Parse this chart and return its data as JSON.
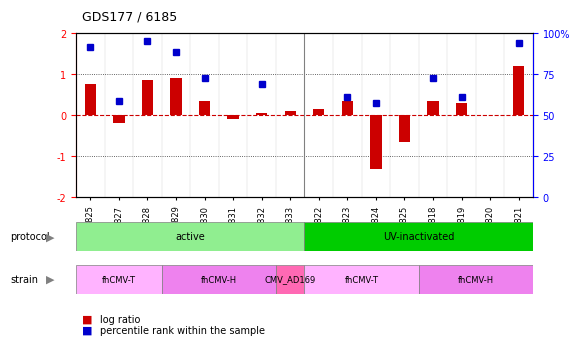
{
  "title": "GDS177 / 6185",
  "samples": [
    "GSM825",
    "GSM827",
    "GSM828",
    "GSM829",
    "GSM830",
    "GSM831",
    "GSM832",
    "GSM833",
    "GSM6822",
    "GSM6823",
    "GSM6824",
    "GSM6825",
    "GSM6818",
    "GSM6819",
    "GSM6820",
    "GSM6821"
  ],
  "log_ratio": [
    0.75,
    -0.2,
    0.85,
    0.9,
    0.35,
    -0.1,
    0.05,
    0.1,
    0.15,
    0.35,
    -1.3,
    -0.65,
    0.35,
    0.3,
    0.0,
    1.2
  ],
  "percentile": [
    1.65,
    0.35,
    1.8,
    1.55,
    0.9,
    null,
    0.75,
    null,
    null,
    0.45,
    0.3,
    null,
    0.9,
    0.45,
    null,
    1.75
  ],
  "protocol_groups": [
    {
      "label": "active",
      "start": 0,
      "end": 7,
      "color": "#90EE90"
    },
    {
      "label": "UV-inactivated",
      "start": 8,
      "end": 15,
      "color": "#00CC00"
    }
  ],
  "strain_groups": [
    {
      "label": "fhCMV-T",
      "start": 0,
      "end": 2,
      "color": "#FFB3FF"
    },
    {
      "label": "fhCMV-H",
      "start": 3,
      "end": 6,
      "color": "#EE82EE"
    },
    {
      "label": "CMV_AD169",
      "start": 7,
      "end": 7,
      "color": "#FF69B4"
    },
    {
      "label": "fhCMV-T",
      "start": 8,
      "end": 11,
      "color": "#FFB3FF"
    },
    {
      "label": "fhCMV-H",
      "start": 12,
      "end": 15,
      "color": "#EE82EE"
    }
  ],
  "ylim": [
    -2,
    2
  ],
  "right_ylim": [
    0,
    100
  ],
  "bar_color": "#CC0000",
  "point_color": "#0000CC",
  "hline_color": "#CC0000",
  "grid_color": "#333333",
  "bg_color": "#F0F0F0"
}
